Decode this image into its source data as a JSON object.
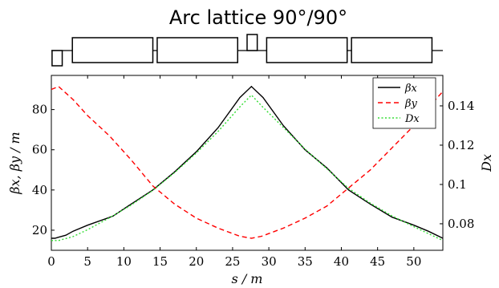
{
  "chart_data": {
    "type": "line",
    "title": "Arc lattice 90°/90°",
    "xlabel": "s / m",
    "ylabel_left": "βx, βy / m",
    "ylabel_right": "Dx",
    "xlim": [
      0,
      54
    ],
    "ylim_left": [
      10,
      97
    ],
    "ylim_right": [
      0.0665,
      0.1555
    ],
    "x_ticks": [
      0,
      5,
      10,
      15,
      20,
      25,
      30,
      35,
      40,
      45,
      50
    ],
    "y_ticks_left": [
      20,
      40,
      60,
      80
    ],
    "y_ticks_right": [
      0.08,
      0.1,
      0.12,
      0.14
    ],
    "grid": false,
    "legend_position": "top-right",
    "series": [
      {
        "name": "βx",
        "axis": "left",
        "color": "#000000",
        "dash": "solid",
        "x": [
          0,
          0.5,
          1,
          2,
          3,
          5,
          8.5,
          11,
          14,
          17,
          20,
          23,
          26,
          27.6,
          29.2,
          32,
          35,
          38,
          41,
          44,
          47,
          50,
          52,
          54
        ],
        "y": [
          16,
          16,
          16.5,
          17.5,
          19.5,
          22.5,
          27,
          33,
          40,
          49,
          59,
          71,
          86,
          91.5,
          86,
          72,
          60,
          51,
          40,
          33,
          26.5,
          22.5,
          19.5,
          16
        ]
      },
      {
        "name": "βy",
        "axis": "left",
        "color": "#ff0000",
        "dash": "dashed",
        "x": [
          0,
          1,
          3,
          5,
          8,
          11,
          14,
          17,
          20,
          23,
          26,
          27.6,
          29,
          32,
          35,
          38,
          41,
          44,
          47,
          50,
          52,
          54
        ],
        "y": [
          90,
          91.5,
          85,
          77,
          67,
          55,
          42,
          33,
          26,
          21,
          17,
          16,
          17,
          21,
          26,
          32,
          41,
          50,
          61,
          72,
          81,
          89
        ]
      },
      {
        "name": "Dx",
        "axis": "right",
        "color": "#33dd33",
        "dash": "dotted",
        "x": [
          0,
          1,
          3,
          5,
          8,
          11,
          14,
          17,
          20,
          23,
          26,
          27.6,
          29,
          32,
          35,
          38,
          41,
          44,
          47,
          50,
          52,
          54
        ],
        "y": [
          0.0715,
          0.0715,
          0.0735,
          0.077,
          0.083,
          0.0895,
          0.097,
          0.106,
          0.116,
          0.127,
          0.1395,
          0.1455,
          0.14,
          0.129,
          0.118,
          0.108,
          0.098,
          0.0905,
          0.084,
          0.0785,
          0.075,
          0.0715
        ]
      }
    ],
    "lattice": [
      {
        "type": "quad",
        "side": "down",
        "s0": 0.1,
        "s1": 1.5
      },
      {
        "type": "dipole",
        "s0": 2.9,
        "s1": 14.0
      },
      {
        "type": "dipole",
        "s0": 14.6,
        "s1": 25.7
      },
      {
        "type": "quad",
        "side": "up",
        "s0": 27.0,
        "s1": 28.4
      },
      {
        "type": "dipole",
        "s0": 29.7,
        "s1": 40.8
      },
      {
        "type": "dipole",
        "s0": 41.4,
        "s1": 52.5
      }
    ]
  }
}
